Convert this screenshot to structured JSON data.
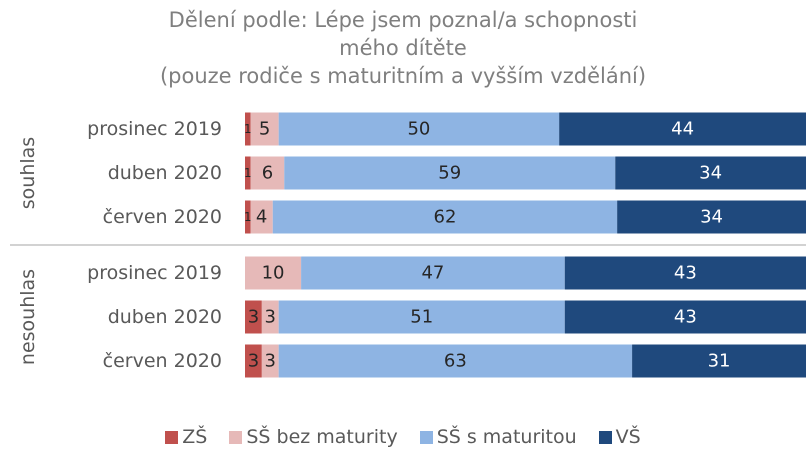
{
  "chart_data": {
    "type": "bar",
    "orientation": "horizontal",
    "stacking": "percent",
    "title": "Dělení podle: Lépe jsem poznal/a schopnosti mého dítěte",
    "subtitle": "(pouze rodiče s maturitním a vyšším vzdělání)",
    "groups": [
      "souhlas",
      "nesouhlas"
    ],
    "categories": [
      "prosinec 2019",
      "duben 2020",
      "červen 2020",
      "prosinec 2019",
      "duben 2020",
      "červen 2020"
    ],
    "series": [
      {
        "name": "ZŠ",
        "color": "#c0504d",
        "values": [
          1,
          1,
          1,
          null,
          3,
          3
        ]
      },
      {
        "name": "SŠ bez maturity",
        "color": "#e6b9b8",
        "values": [
          5,
          6,
          4,
          10,
          3,
          3
        ]
      },
      {
        "name": "SŠ s maturitou",
        "color": "#8eb4e3",
        "values": [
          50,
          59,
          62,
          47,
          51,
          63
        ]
      },
      {
        "name": "VŠ",
        "color": "#1f497d",
        "values": [
          44,
          34,
          34,
          43,
          43,
          31
        ]
      }
    ],
    "legend": "bottom"
  }
}
